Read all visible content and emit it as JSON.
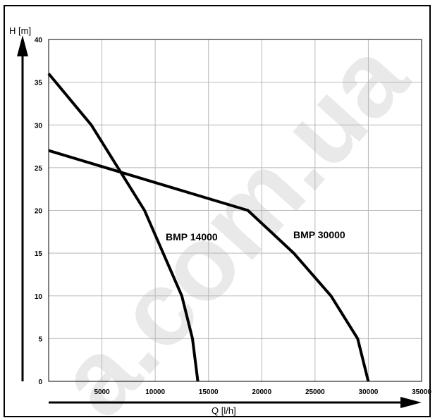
{
  "chart_data": {
    "type": "line",
    "xlabel": "Q [l/h]",
    "ylabel": "H [m]",
    "xlim": [
      0,
      35000
    ],
    "ylim": [
      0,
      40
    ],
    "x_ticks": [
      "5000",
      "10000",
      "15000",
      "20000",
      "25000",
      "30000",
      "35000"
    ],
    "y_ticks": [
      "0",
      "5",
      "10",
      "15",
      "20",
      "25",
      "30",
      "35",
      "40"
    ],
    "grid": true,
    "series": [
      {
        "name": "BMP 14000",
        "points": [
          [
            0,
            36
          ],
          [
            4000,
            30
          ],
          [
            9000,
            20
          ],
          [
            12500,
            10
          ],
          [
            13500,
            5
          ],
          [
            14000,
            0
          ]
        ]
      },
      {
        "name": "BMP 30000",
        "points": [
          [
            0,
            27
          ],
          [
            18700,
            20
          ],
          [
            23000,
            15
          ],
          [
            26500,
            10
          ],
          [
            29000,
            5
          ],
          [
            30000,
            0
          ]
        ]
      }
    ],
    "line_color": "#000000",
    "grid_color": "#b8b8b8"
  },
  "watermark": "a.com.ua"
}
